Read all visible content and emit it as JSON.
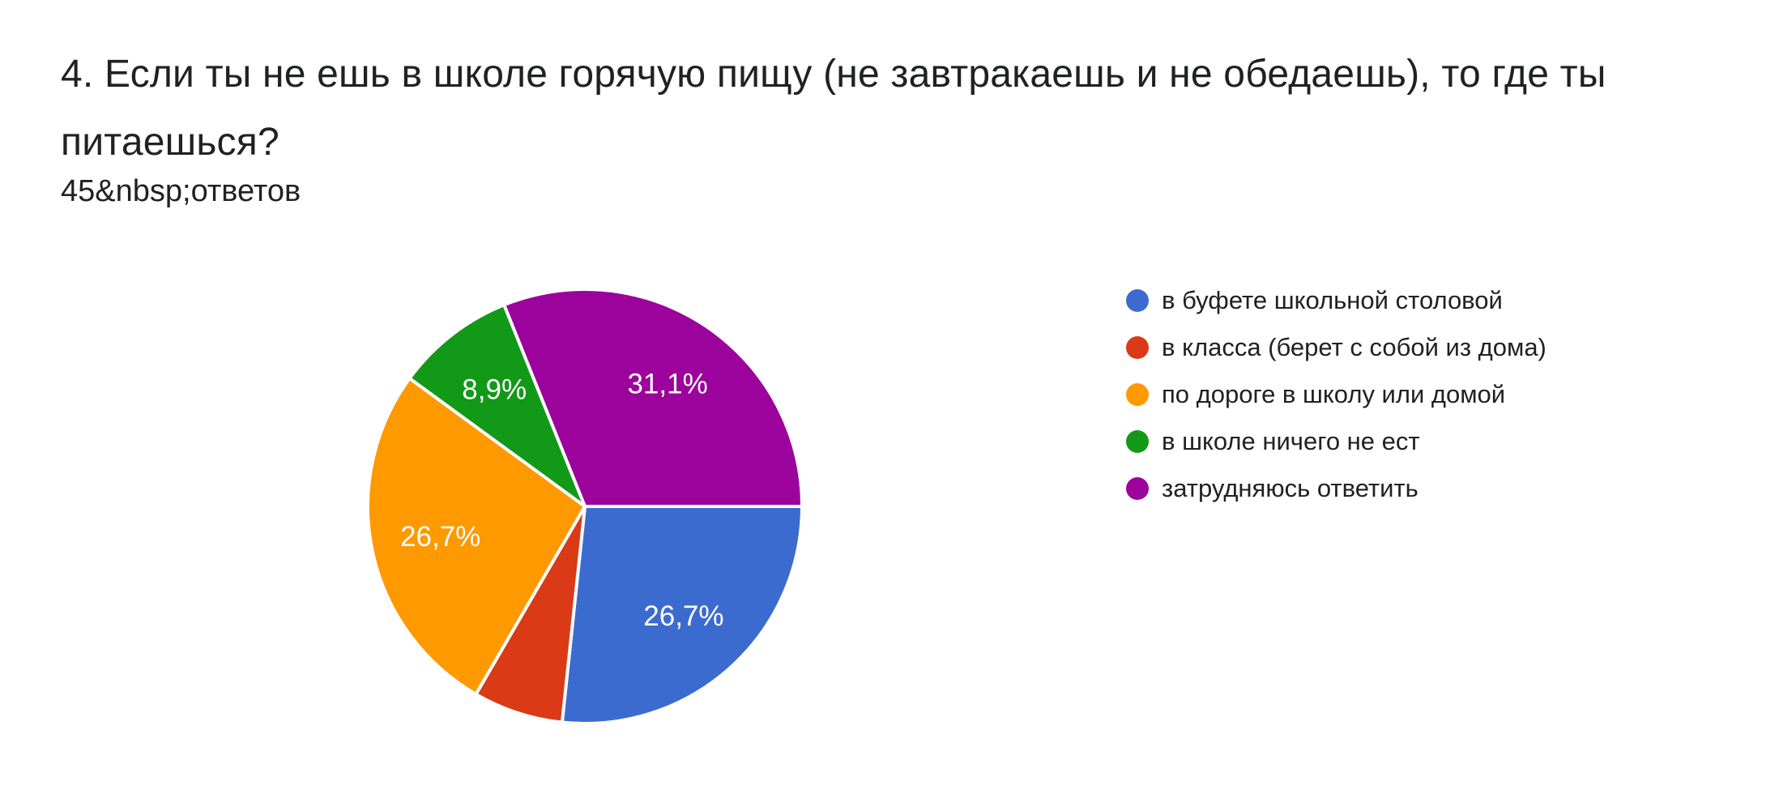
{
  "header": {
    "title": "4. Если ты не ешь в школе горячую пищу (не завтракаешь и не обедаешь), то где ты питаешься?",
    "responses_label": "45&nbsp;ответов"
  },
  "chart_data": {
    "type": "pie",
    "title": "4. Если ты не ешь в школе горячую пищу (не завтракаешь и не обедаешь), то где ты питаешься?",
    "subtitle": "45&nbsp;ответов",
    "total_responses_shown": "45",
    "legend_position": "right",
    "start_angle_deg": 0,
    "direction": "clockwise",
    "slice_label_color": "#ffffff",
    "slices": [
      {
        "label": "в буфете школьной столовой",
        "value_pct": 26.7,
        "display_label": "26,7%",
        "color": "#3C6BD0"
      },
      {
        "label": "в класса (берет с собой из дома)",
        "value_pct": 6.7,
        "display_label": "",
        "color": "#DA3A15"
      },
      {
        "label": "по дороге в школу или домой",
        "value_pct": 26.7,
        "display_label": "26,7%",
        "color": "#FF9900"
      },
      {
        "label": "в школе ничего не ест",
        "value_pct": 8.9,
        "display_label": "8,9%",
        "color": "#129918"
      },
      {
        "label": "затрудняюсь ответить",
        "value_pct": 31.1,
        "display_label": "31,1%",
        "color": "#9C029C"
      }
    ]
  }
}
